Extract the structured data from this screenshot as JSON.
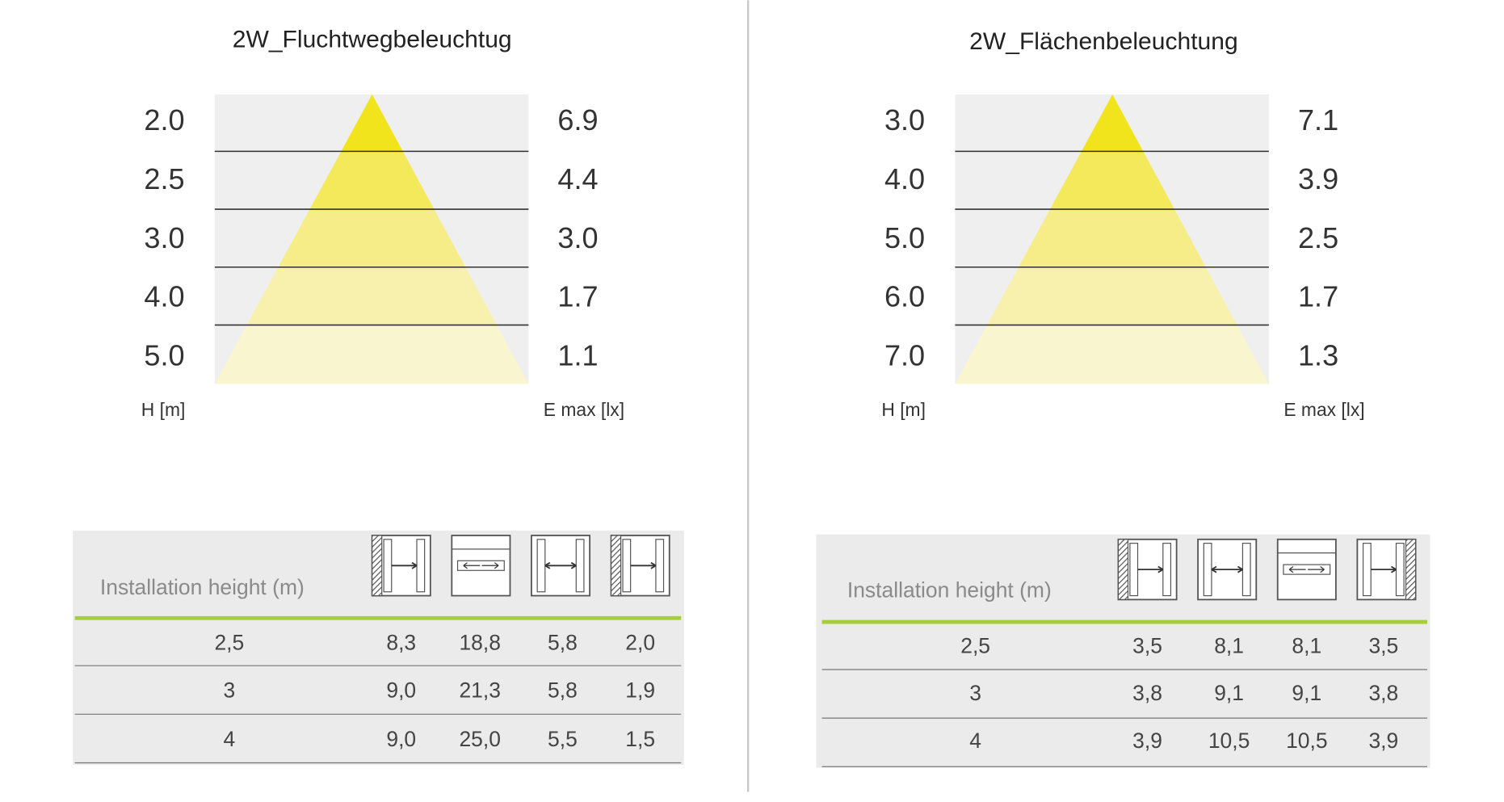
{
  "panels": [
    {
      "title": "2W_Fluchtwegbeleuchtug",
      "heights": [
        "2.0",
        "2.5",
        "3.0",
        "4.0",
        "5.0"
      ],
      "emax": [
        "6.9",
        "4.4",
        "3.0",
        "1.7",
        "1.1"
      ],
      "h_label": "H [m]",
      "e_label": "E max [lx]",
      "table": {
        "header": "Installation height (m)",
        "rows": [
          [
            "2,5",
            "8,3",
            "18,8",
            "5,8",
            "2,0"
          ],
          [
            "3",
            "9,0",
            "21,3",
            "5,8",
            "1,9"
          ],
          [
            "4",
            "9,0",
            "25,0",
            "5,5",
            "1,5"
          ]
        ]
      }
    },
    {
      "title": "2W_Flächenbeleuchtung",
      "heights": [
        "3.0",
        "4.0",
        "5.0",
        "6.0",
        "7.0"
      ],
      "emax": [
        "7.1",
        "3.9",
        "2.5",
        "1.7",
        "1.3"
      ],
      "h_label": "H [m]",
      "e_label": "E max [lx]",
      "table": {
        "header": "Installation height (m)",
        "rows": [
          [
            "2,5",
            "3,5",
            "8,1",
            "8,1",
            "3,5"
          ],
          [
            "3",
            "3,8",
            "9,1",
            "9,1",
            "3,8"
          ],
          [
            "4",
            "3,9",
            "10,5",
            "10,5",
            "3,9"
          ]
        ]
      }
    }
  ]
}
